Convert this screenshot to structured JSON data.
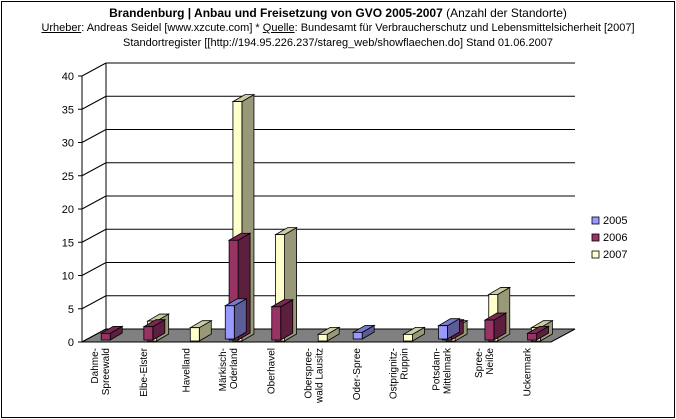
{
  "header": {
    "title_bold": "Brandenburg | Anbau und Freisetzung von GVO 2005-2007",
    "title_note": "(Anzahl der Standorte)",
    "urheber_label": "Urheber",
    "urheber_value": ": Andreas Seidel [www.xzcute.com]  *",
    "quelle_label": "Quelle",
    "quelle_value": ": Bundesamt für Verbraucherschutz und Lebensmittelsicherheit [2007]",
    "line3": "Standortregister [[http://194.95.226.237/stareg_web/showflaechen.do]   Stand 01.06.2007"
  },
  "chart_data": {
    "type": "bar",
    "categories": [
      [
        "Dahme-",
        "Spreewald"
      ],
      [
        "Elbe-Elster"
      ],
      [
        "Havelland"
      ],
      [
        "Märkisch-",
        "Oderland"
      ],
      [
        "Oberhavel"
      ],
      [
        "Oberspree-",
        "wald Lausitz"
      ],
      [
        "Oder-Spree"
      ],
      [
        "Ostprignitz-",
        "Ruppin"
      ],
      [
        "Potsdam-",
        "Mittelmark"
      ],
      [
        "Spree-",
        "Neiße"
      ],
      [
        "Uckermark"
      ]
    ],
    "series": [
      {
        "name": "2005",
        "color": "#9999ff",
        "values": [
          0,
          0,
          0,
          5,
          0,
          0,
          1,
          0,
          2,
          0,
          0
        ]
      },
      {
        "name": "2006",
        "color": "#993366",
        "values": [
          1,
          2,
          0,
          15,
          5,
          0,
          0,
          0,
          2,
          3,
          1
        ]
      },
      {
        "name": "2007",
        "color": "#ffffcc",
        "values": [
          0,
          3,
          2,
          36,
          16,
          1,
          0,
          1,
          2,
          7,
          2
        ]
      }
    ],
    "yticks": [
      "0",
      "5",
      "10",
      "15",
      "20",
      "25",
      "30",
      "35",
      "40"
    ],
    "ylim": [
      0,
      40
    ],
    "grid": true,
    "legend_position": "right",
    "view": "3d-clustered-columns"
  }
}
